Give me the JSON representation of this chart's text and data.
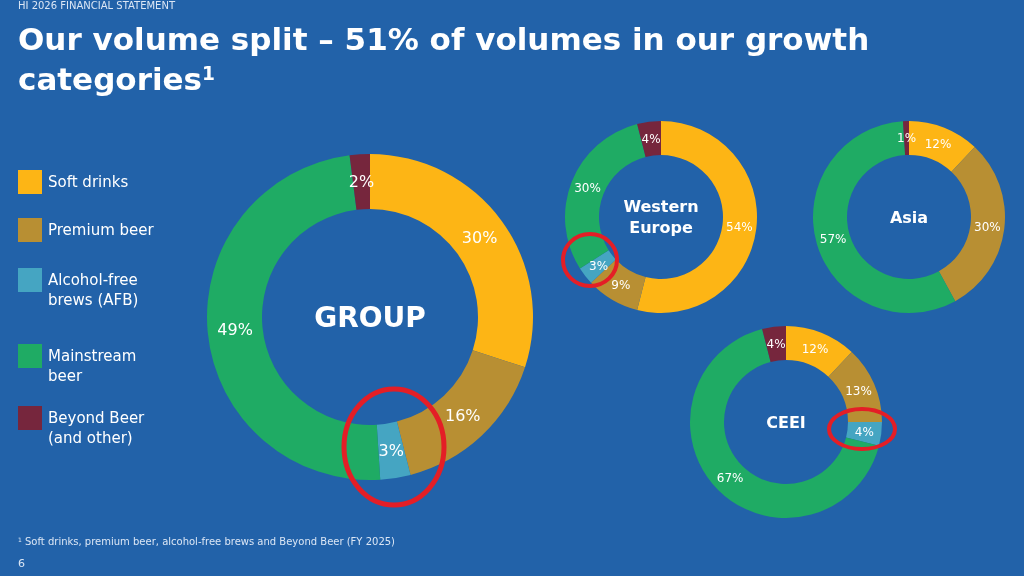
{
  "chart_data": [
    {
      "type": "other",
      "subtitle": "HI 2026 FINANCIAL STATEMENT",
      "title": "Our volume split – 51% of volumes in our growth categories$^{1}$",
      "annotations": [
        "$^{1}$ Soft drinks, premium beer, alcohol-free brews and Beyond Beer (FY 2025)",
        "6"
      ]
    },
    {
      "type": "donut",
      "title": "GROUP",
      "categories": [
        "Soft drinks",
        "Premium beer",
        "Alcohol-free brews (AFB)",
        "Mainstream beer",
        "Beyond Beer (and other)"
      ],
      "values": [
        30,
        16,
        3,
        49,
        2
      ],
      "colors": [
        "#fdb515",
        "#b88f33",
        "#45a5c2",
        "#1fab64",
        "#76263d"
      ],
      "value_labels": [
        "30%",
        "16%",
        "3%",
        "49%",
        "2%"
      ],
      "legend": "left"
    },
    {
      "type": "donut",
      "title": "Western Europe",
      "values": [
        54,
        9,
        3,
        30,
        4
      ],
      "colors": [
        "#fdb515",
        "#b88f33",
        "#45a5c2",
        "#1fab64",
        "#76263d"
      ],
      "value_labels": [
        "54%",
        "9%",
        "3%",
        "30%",
        "4%"
      ]
    },
    {
      "type": "donut",
      "title": "Asia",
      "values": [
        12,
        30,
        0,
        57,
        1
      ],
      "colors": [
        "#fdb515",
        "#b88f33",
        "#45a5c2",
        "#1fab64",
        "#76263d"
      ],
      "value_labels": [
        "12%",
        "30%",
        null,
        "57%",
        "1%"
      ]
    },
    {
      "type": "donut",
      "title": "CEEI",
      "values": [
        12,
        13,
        4,
        67,
        4
      ],
      "colors": [
        "#fdb515",
        "#b88f33",
        "#45a5c2",
        "#1fab64",
        "#76263d"
      ],
      "value_labels": [
        "12%",
        "13%",
        "4%",
        "67%",
        "4%"
      ]
    }
  ]
}
